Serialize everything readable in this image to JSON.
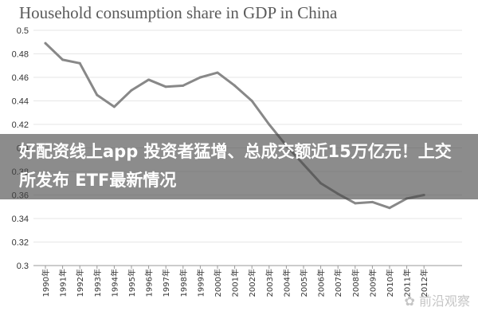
{
  "overlay": {
    "headline": "好配资线上app 投资者猛增、总成交额近15万亿元！上交所发布 ETF最新情况"
  },
  "watermark": {
    "text": "✿ 前沿观察"
  },
  "colors": {
    "line": "#888888",
    "grid": "#e6e6e6",
    "axis": "#999999"
  },
  "chart_data": {
    "type": "line",
    "title": "Household consumption share in GDP in China",
    "xlabel": "",
    "ylabel": "",
    "categories": [
      "1990年",
      "1991年",
      "1992年",
      "1993年",
      "1994年",
      "1995年",
      "1996年",
      "1997年",
      "1998年",
      "1999年",
      "2000年",
      "2001年",
      "2002年",
      "2003年",
      "2004年",
      "2005年",
      "2006年",
      "2007年",
      "2008年",
      "2009年",
      "2010年",
      "2011年",
      "2012年"
    ],
    "series": [
      {
        "values": [
          0.489,
          0.475,
          0.472,
          0.445,
          0.435,
          0.449,
          0.458,
          0.452,
          0.453,
          0.46,
          0.464,
          0.453,
          0.44,
          0.42,
          0.402,
          0.386,
          0.37,
          0.361,
          0.353,
          0.354,
          0.349,
          0.357,
          0.36
        ]
      }
    ],
    "ylim": [
      0.3,
      0.5
    ],
    "yticks": [
      0.3,
      0.32,
      0.34,
      0.36,
      0.38,
      0.4,
      0.42,
      0.44,
      0.46,
      0.48,
      0.5
    ],
    "ytick_labels": [
      "0.3",
      "0.32",
      "0.34",
      "0.36",
      "0.38",
      "0.4",
      "0.42",
      "0.44",
      "0.46",
      "0.48",
      "0.5"
    ],
    "grid": "horizontal",
    "legend": "none"
  }
}
